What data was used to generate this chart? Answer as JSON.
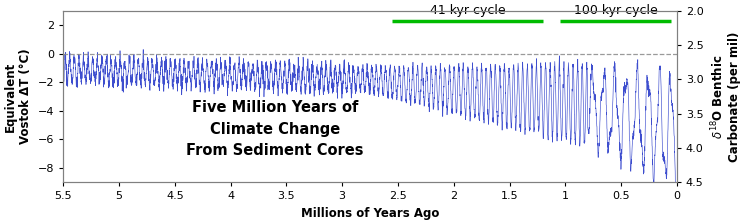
{
  "xlabel": "Millions of Years Ago",
  "ylabel_left": "Equivalent\nVostok ΔT (°C)",
  "ylabel_right": "δ¹18O Benthic\nCarbonate (per mil)",
  "annotation_line1": "Five Million Years of",
  "annotation_line2": "Climate Change",
  "annotation_line3": "From Sediment Cores",
  "xlim": [
    5.5,
    0.0
  ],
  "ylim_left": [
    -9.0,
    3.0
  ],
  "ylim_right": [
    4.5,
    2.0
  ],
  "yticks_left": [
    2,
    0,
    -2,
    -4,
    -6,
    -8
  ],
  "yticks_right": [
    2,
    2.5,
    3,
    3.5,
    4,
    4.5
  ],
  "xticks": [
    5.5,
    5.0,
    4.5,
    4.0,
    3.5,
    3.0,
    2.5,
    2.0,
    1.5,
    1.0,
    0.5,
    0.0
  ],
  "xtick_labels": [
    "5.5",
    "5",
    "4.5",
    "4",
    "3.5",
    "3",
    "2.5",
    "2",
    "1.5",
    "1",
    "0.5",
    "0"
  ],
  "dashed_line_y": 0.0,
  "green_bar_41kyr_start": 2.55,
  "green_bar_41kyr_end": 1.2,
  "green_bar_100kyr_start": 1.05,
  "green_bar_100kyr_end": 0.05,
  "green_bar_y_dT": 2.3,
  "label_41kyr": "41 kyr cycle",
  "label_100kyr": "100 kyr cycle",
  "line_color": "#3344cc",
  "green_color": "#00bb00",
  "dashed_color": "#888888",
  "background_color": "#ffffff",
  "annotation_fontsize": 10.5,
  "axis_label_fontsize": 8.5,
  "tick_fontsize": 8
}
